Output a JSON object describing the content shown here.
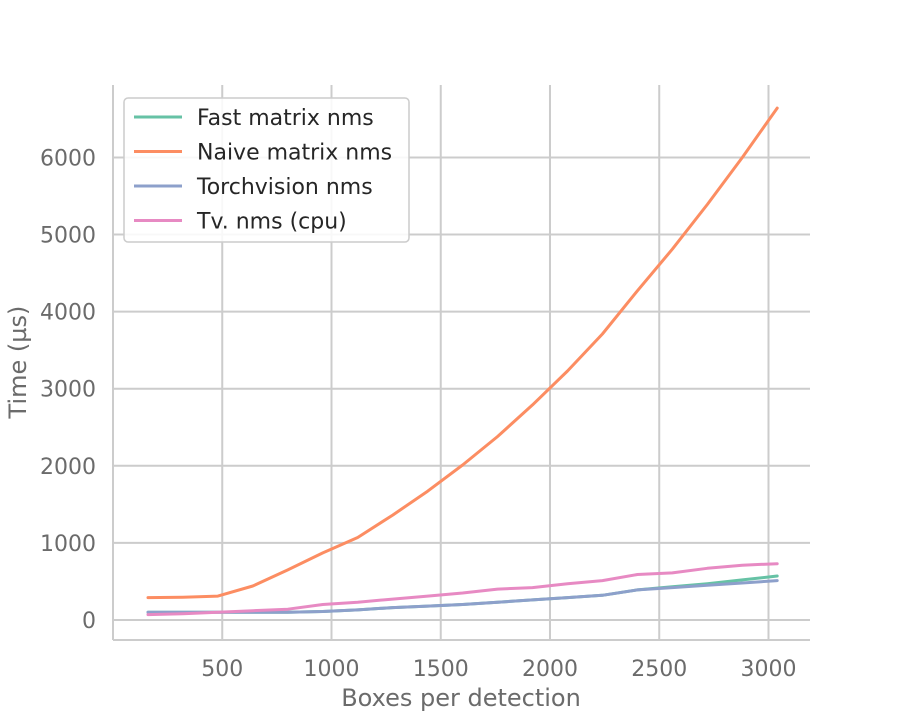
{
  "chart_data": {
    "type": "line",
    "title": "",
    "xlabel": "Boxes per detection",
    "ylabel": "Time (µs)",
    "xlim": [
      0,
      3190
    ],
    "ylim": [
      -260,
      6940
    ],
    "xticks": [
      500,
      1000,
      1500,
      2000,
      2500,
      3000
    ],
    "yticks": [
      0,
      1000,
      2000,
      3000,
      4000,
      5000,
      6000
    ],
    "grid": true,
    "legend_position": "top-left",
    "series": [
      {
        "name": "Fast matrix nms",
        "color": "#66c2a5",
        "x": [
          160,
          480,
          800,
          960,
          1120,
          1280,
          1440,
          1600,
          1760,
          1920,
          2080,
          2240,
          2400,
          2560,
          2720,
          2880,
          3040
        ],
        "y": [
          100,
          100,
          100,
          110,
          130,
          160,
          180,
          200,
          230,
          260,
          290,
          320,
          390,
          430,
          470,
          520,
          570
        ]
      },
      {
        "name": "Naive matrix nms",
        "color": "#fc8d62",
        "x": [
          160,
          320,
          480,
          640,
          800,
          960,
          1120,
          1280,
          1440,
          1600,
          1760,
          1920,
          2080,
          2240,
          2400,
          2560,
          2720,
          2880,
          3040
        ],
        "y": [
          290,
          295,
          310,
          440,
          650,
          870,
          1070,
          1360,
          1670,
          2010,
          2380,
          2790,
          3230,
          3710,
          4270,
          4810,
          5390,
          6000,
          6640
        ]
      },
      {
        "name": "Torchvision nms",
        "color": "#8da0cb",
        "x": [
          160,
          480,
          800,
          960,
          1120,
          1280,
          1440,
          1600,
          1760,
          1920,
          2080,
          2240,
          2400,
          2560,
          2720,
          2880,
          3040
        ],
        "y": [
          100,
          100,
          100,
          110,
          130,
          160,
          180,
          200,
          230,
          260,
          290,
          320,
          390,
          420,
          450,
          480,
          510
        ]
      },
      {
        "name": "Tv. nms (cpu)",
        "color": "#e78ac3",
        "x": [
          160,
          320,
          480,
          640,
          800,
          960,
          1120,
          1280,
          1440,
          1600,
          1760,
          1920,
          2080,
          2240,
          2400,
          2560,
          2720,
          2880,
          3040
        ],
        "y": [
          70,
          80,
          100,
          120,
          140,
          200,
          230,
          270,
          310,
          350,
          400,
          420,
          470,
          510,
          590,
          610,
          670,
          710,
          730
        ]
      }
    ]
  }
}
